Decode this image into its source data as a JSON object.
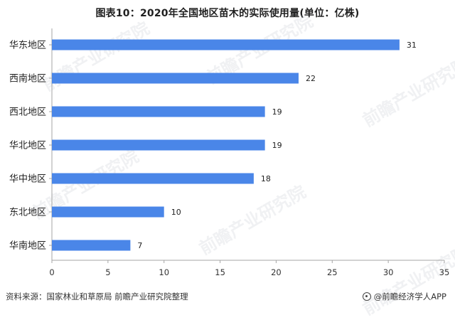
{
  "chart_data": {
    "type": "bar",
    "orientation": "horizontal",
    "title": "图表10：2020年全国地区苗木的实际使用量(单位：亿株)",
    "categories": [
      "华东地区",
      "西南地区",
      "西北地区",
      "华北地区",
      "华中地区",
      "东北地区",
      "华南地区"
    ],
    "values": [
      31,
      22,
      19,
      19,
      18,
      10,
      7
    ],
    "data_labels": [
      "31",
      "22",
      "19",
      "19",
      "18",
      "10",
      "7"
    ],
    "xlabel": "",
    "ylabel": "",
    "xlim": [
      0,
      35
    ],
    "x_ticks": [
      0,
      5,
      10,
      15,
      20,
      25,
      30,
      35
    ],
    "x_tick_labels": [
      "0",
      "5",
      "10",
      "15",
      "20",
      "25",
      "30",
      "35"
    ],
    "grid": false,
    "bar_color": "#4a86e8",
    "axis_color": "#a6a6a6"
  },
  "footer": {
    "source": "资料来源：国家林业和草原局 前瞻产业研究院整理",
    "brand": "@前瞻经济学人APP"
  },
  "watermark": {
    "text": "前瞻产业研究院"
  }
}
